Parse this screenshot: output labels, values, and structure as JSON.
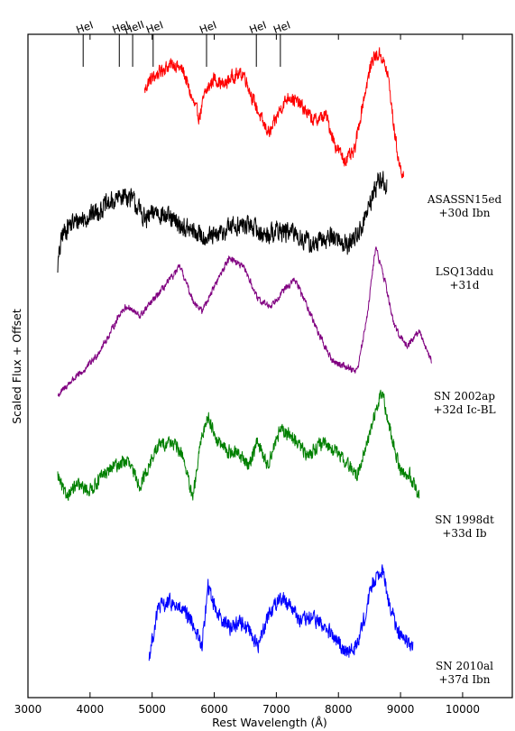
{
  "chart_data": {
    "type": "line",
    "title": "",
    "xlabel": "Rest Wavelength (Å)",
    "ylabel": "Scaled Flux + Offset",
    "xlim": [
      3000,
      10800
    ],
    "xticks": [
      3000,
      4000,
      5000,
      6000,
      7000,
      8000,
      9000,
      10000
    ],
    "grid": false,
    "legend": "none",
    "line_markers": [
      {
        "label": "HeI",
        "wavelength": 3889
      },
      {
        "label": "HeI",
        "wavelength": 4471
      },
      {
        "label": "HeII",
        "wavelength": 4686
      },
      {
        "label": "HeI",
        "wavelength": 5016
      },
      {
        "label": "HeI",
        "wavelength": 5876
      },
      {
        "label": "HeI",
        "wavelength": 6678
      },
      {
        "label": "HeI",
        "wavelength": 7065
      }
    ],
    "series": [
      {
        "label_line1": "ASASSN15ed",
        "label_line2": "+30d Ibn",
        "color": "#ff0000",
        "noise": 0.06,
        "points": [
          [
            4880,
            0.45
          ],
          [
            4950,
            0.55
          ],
          [
            5050,
            0.6
          ],
          [
            5200,
            0.68
          ],
          [
            5350,
            0.72
          ],
          [
            5500,
            0.65
          ],
          [
            5650,
            0.35
          ],
          [
            5760,
            0.18
          ],
          [
            5850,
            0.42
          ],
          [
            6000,
            0.58
          ],
          [
            6150,
            0.5
          ],
          [
            6300,
            0.6
          ],
          [
            6480,
            0.62
          ],
          [
            6600,
            0.4
          ],
          [
            6700,
            0.25
          ],
          [
            6800,
            0.1
          ],
          [
            6900,
            0.02
          ],
          [
            7050,
            0.25
          ],
          [
            7200,
            0.4
          ],
          [
            7400,
            0.3
          ],
          [
            7600,
            0.15
          ],
          [
            7800,
            0.2
          ],
          [
            7950,
            -0.1
          ],
          [
            8100,
            -0.25
          ],
          [
            8250,
            -0.18
          ],
          [
            8400,
            0.35
          ],
          [
            8550,
            0.78
          ],
          [
            8680,
            0.82
          ],
          [
            8800,
            0.6
          ],
          [
            8900,
            0.05
          ],
          [
            8980,
            -0.3
          ],
          [
            9050,
            -0.4
          ]
        ]
      },
      {
        "label_line1": "LSQ13ddu",
        "label_line2": "+31d",
        "color": "#000000",
        "noise": 0.09,
        "points": [
          [
            3480,
            -0.4
          ],
          [
            3550,
            -0.1
          ],
          [
            3650,
            0.0
          ],
          [
            3800,
            0.05
          ],
          [
            4000,
            0.1
          ],
          [
            4200,
            0.18
          ],
          [
            4400,
            0.25
          ],
          [
            4550,
            0.32
          ],
          [
            4700,
            0.25
          ],
          [
            4900,
            0.05
          ],
          [
            5050,
            0.15
          ],
          [
            5200,
            0.1
          ],
          [
            5400,
            0.02
          ],
          [
            5600,
            -0.05
          ],
          [
            5800,
            -0.1
          ],
          [
            6000,
            -0.12
          ],
          [
            6300,
            0.0
          ],
          [
            6600,
            0.0
          ],
          [
            6800,
            -0.1
          ],
          [
            7000,
            -0.05
          ],
          [
            7300,
            -0.08
          ],
          [
            7600,
            -0.2
          ],
          [
            7900,
            -0.1
          ],
          [
            8150,
            -0.2
          ],
          [
            8350,
            -0.05
          ],
          [
            8500,
            0.2
          ],
          [
            8650,
            0.48
          ],
          [
            8780,
            0.4
          ]
        ]
      },
      {
        "label_line1": "SN 2002ap",
        "label_line2": "+32d Ic-BL",
        "color": "#800080",
        "noise": 0.03,
        "points": [
          [
            3480,
            -0.55
          ],
          [
            3700,
            -0.4
          ],
          [
            3900,
            -0.3
          ],
          [
            4100,
            -0.15
          ],
          [
            4300,
            0.05
          ],
          [
            4500,
            0.3
          ],
          [
            4600,
            0.35
          ],
          [
            4800,
            0.25
          ],
          [
            5000,
            0.4
          ],
          [
            5200,
            0.55
          ],
          [
            5450,
            0.75
          ],
          [
            5650,
            0.42
          ],
          [
            5800,
            0.3
          ],
          [
            6000,
            0.55
          ],
          [
            6250,
            0.85
          ],
          [
            6500,
            0.72
          ],
          [
            6700,
            0.42
          ],
          [
            6900,
            0.35
          ],
          [
            7100,
            0.5
          ],
          [
            7300,
            0.62
          ],
          [
            7500,
            0.35
          ],
          [
            7700,
            0.05
          ],
          [
            7900,
            -0.2
          ],
          [
            8100,
            -0.25
          ],
          [
            8300,
            -0.3
          ],
          [
            8450,
            0.2
          ],
          [
            8600,
            0.95
          ],
          [
            8750,
            0.6
          ],
          [
            8900,
            0.15
          ],
          [
            9100,
            -0.05
          ],
          [
            9300,
            0.1
          ],
          [
            9500,
            -0.2
          ]
        ]
      },
      {
        "label_line1": "SN 1998dt",
        "label_line2": "+33d Ib",
        "color": "#008000",
        "noise": 0.06,
        "points": [
          [
            3480,
            -0.1
          ],
          [
            3600,
            -0.3
          ],
          [
            3800,
            -0.2
          ],
          [
            4000,
            -0.25
          ],
          [
            4200,
            -0.1
          ],
          [
            4400,
            0.0
          ],
          [
            4600,
            0.05
          ],
          [
            4800,
            -0.2
          ],
          [
            4950,
            0.0
          ],
          [
            5100,
            0.2
          ],
          [
            5300,
            0.25
          ],
          [
            5500,
            0.1
          ],
          [
            5650,
            -0.35
          ],
          [
            5800,
            0.3
          ],
          [
            5900,
            0.5
          ],
          [
            6050,
            0.25
          ],
          [
            6200,
            0.15
          ],
          [
            6400,
            0.12
          ],
          [
            6550,
            0.0
          ],
          [
            6700,
            0.25
          ],
          [
            6850,
            0.0
          ],
          [
            7050,
            0.35
          ],
          [
            7250,
            0.3
          ],
          [
            7500,
            0.1
          ],
          [
            7700,
            0.22
          ],
          [
            7900,
            0.18
          ],
          [
            8100,
            0.05
          ],
          [
            8300,
            -0.1
          ],
          [
            8450,
            0.2
          ],
          [
            8600,
            0.55
          ],
          [
            8700,
            0.75
          ],
          [
            8850,
            0.3
          ],
          [
            9000,
            -0.05
          ],
          [
            9150,
            -0.1
          ],
          [
            9300,
            -0.3
          ]
        ]
      },
      {
        "label_line1": "SN 2010al",
        "label_line2": "+37d Ibn",
        "color": "#0000ff",
        "noise": 0.07,
        "points": [
          [
            4950,
            -0.3
          ],
          [
            5100,
            0.2
          ],
          [
            5300,
            0.25
          ],
          [
            5500,
            0.15
          ],
          [
            5650,
            0.05
          ],
          [
            5800,
            -0.2
          ],
          [
            5900,
            0.4
          ],
          [
            6050,
            0.15
          ],
          [
            6250,
            0.0
          ],
          [
            6400,
            0.05
          ],
          [
            6550,
            0.0
          ],
          [
            6700,
            -0.2
          ],
          [
            6850,
            0.1
          ],
          [
            7050,
            0.3
          ],
          [
            7200,
            0.25
          ],
          [
            7400,
            0.05
          ],
          [
            7600,
            0.1
          ],
          [
            7850,
            -0.05
          ],
          [
            8050,
            -0.2
          ],
          [
            8250,
            -0.25
          ],
          [
            8400,
            0.05
          ],
          [
            8550,
            0.45
          ],
          [
            8700,
            0.6
          ],
          [
            8800,
            0.3
          ],
          [
            8950,
            -0.05
          ],
          [
            9100,
            -0.15
          ],
          [
            9200,
            -0.2
          ]
        ]
      }
    ]
  }
}
